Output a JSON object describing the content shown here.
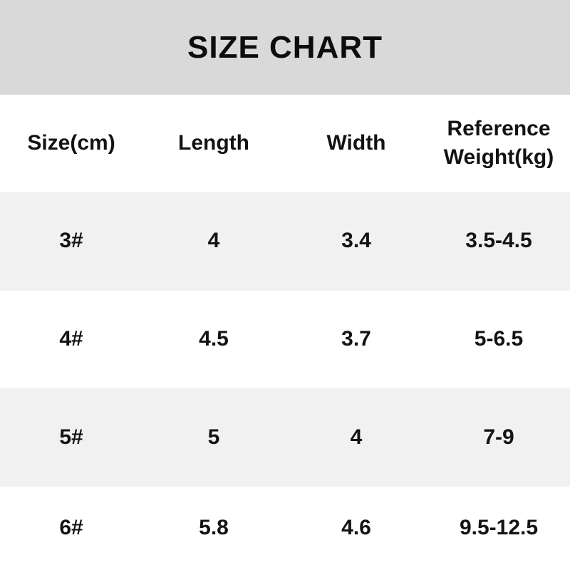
{
  "header": {
    "title": "SIZE CHART"
  },
  "table": {
    "columns": [
      "Size(cm)",
      "Length",
      "Width",
      "Reference Weight(kg)"
    ],
    "rows": [
      [
        "3#",
        "4",
        "3.4",
        "3.5-4.5"
      ],
      [
        "4#",
        "4.5",
        "3.7",
        "5-6.5"
      ],
      [
        "5#",
        "5",
        "4",
        "7-9"
      ],
      [
        "6#",
        "5.8",
        "4.6",
        "9.5-12.5"
      ]
    ]
  },
  "colors": {
    "title_band": "#d9d9d9",
    "row_stripe": "#f1f1f1",
    "background": "#ffffff",
    "text": "#131313"
  },
  "chart_data": {
    "type": "table",
    "title": "SIZE CHART",
    "columns": [
      "Size(cm)",
      "Length",
      "Width",
      "Reference Weight(kg)"
    ],
    "rows": [
      [
        "3#",
        "4",
        "3.4",
        "3.5-4.5"
      ],
      [
        "4#",
        "4.5",
        "3.7",
        "5-6.5"
      ],
      [
        "5#",
        "5",
        "4",
        "7-9"
      ],
      [
        "6#",
        "5.8",
        "4.6",
        "9.5-12.5"
      ]
    ],
    "notes": "Striped rows: rows 1 and 3 have light gray background; header band dark gray; no cell borders; all text bold, centered in 4 equal columns"
  }
}
